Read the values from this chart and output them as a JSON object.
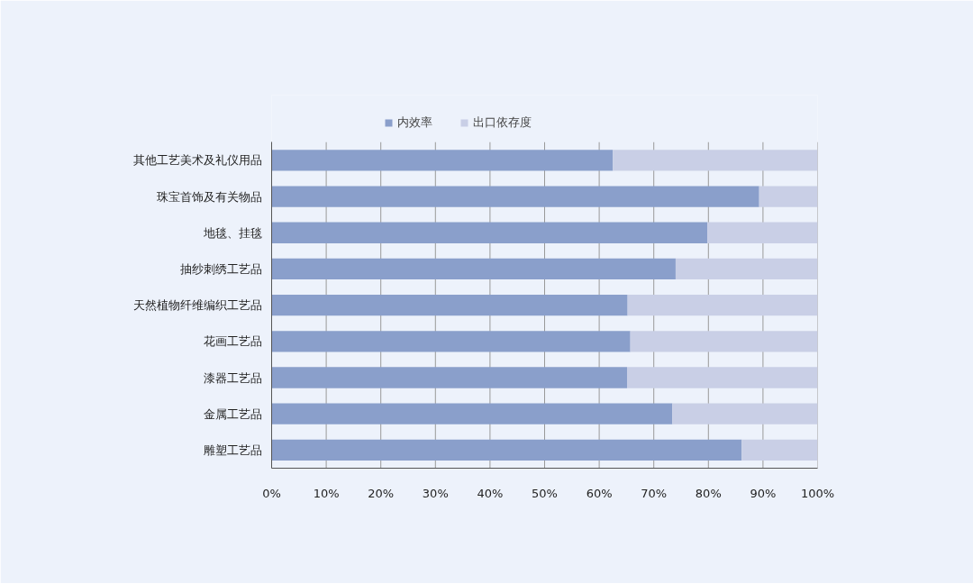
{
  "chart_data": {
    "type": "bar",
    "orientation": "horizontal",
    "stacked": true,
    "categories": [
      "其他工艺美术及礼仪用品",
      "珠宝首饰及有关物品",
      "地毯、挂毯",
      "抽纱刺绣工艺品",
      "天然植物纤维编织工艺品",
      "花画工艺品",
      "漆器工艺品",
      "金属工艺品",
      "雕塑工艺品"
    ],
    "series": [
      {
        "name": "内效率",
        "color": "#8a9fcb",
        "values": [
          62.5,
          89.3,
          79.8,
          74.0,
          65.2,
          65.7,
          65.1,
          73.4,
          86.1
        ]
      },
      {
        "name": "出口依存度",
        "color": "#c9cfe6",
        "values": [
          37.5,
          10.7,
          20.2,
          26.0,
          34.8,
          34.3,
          34.9,
          26.6,
          13.9
        ]
      }
    ],
    "xlim": [
      0,
      100
    ],
    "xticks": [
      {
        "value": 0,
        "label": "0%"
      },
      {
        "value": 10,
        "label": "10%"
      },
      {
        "value": 20,
        "label": "20%"
      },
      {
        "value": 30,
        "label": "30%"
      },
      {
        "value": 40,
        "label": "40%"
      },
      {
        "value": 50,
        "label": "50%"
      },
      {
        "value": 60,
        "label": "60%"
      },
      {
        "value": 70,
        "label": "70%"
      },
      {
        "value": 80,
        "label": "80%"
      },
      {
        "value": 90,
        "label": "90%"
      },
      {
        "value": 100,
        "label": "100%"
      }
    ],
    "grid": "x",
    "legend": "top"
  }
}
